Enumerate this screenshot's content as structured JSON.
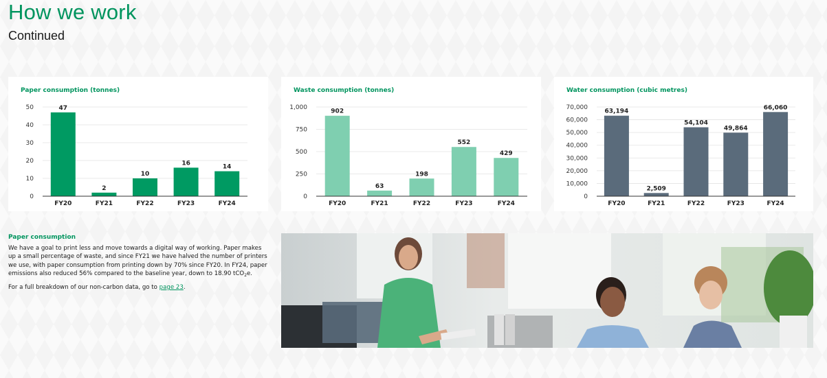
{
  "page": {
    "title": "How we work",
    "subtitle": "Continued"
  },
  "text": {
    "heading": "Paper consumption",
    "para1_a": "We have a goal to print less and move towards a digital way of working. Paper makes up a small percentage of waste, and since FY21 we have halved the number of printers we use, with paper consumption from printing down by 70% since FY20. In FY24, paper emissions also reduced 56% compared to the baseline year, down to 18.90 tCO",
    "para1_sub": "2",
    "para1_b": "e.",
    "para2_a": "For a full breakdown of our non-carbon data, go to ",
    "para2_link": "page 23",
    "para2_b": "."
  },
  "colors": {
    "brand_green": "#00945e",
    "paper_bar": "#009a62",
    "waste_bar": "#7fcfb0",
    "water_bar": "#5a6b7b"
  },
  "chart_data": [
    {
      "type": "bar",
      "title": "Paper consumption (tonnes)",
      "categories": [
        "FY20",
        "FY21",
        "FY22",
        "FY23",
        "FY24"
      ],
      "values": [
        47,
        2,
        10,
        16,
        14
      ],
      "value_labels": [
        "47",
        "2",
        "10",
        "16",
        "14"
      ],
      "ylim": [
        0,
        50
      ],
      "yticks": [
        0,
        10,
        20,
        30,
        40,
        50
      ],
      "ytick_labels": [
        "0",
        "10",
        "20",
        "30",
        "40",
        "50"
      ],
      "grid": true,
      "color": "#009a62"
    },
    {
      "type": "bar",
      "title": "Waste consumption (tonnes)",
      "categories": [
        "FY20",
        "FY21",
        "FY22",
        "FY23",
        "FY24"
      ],
      "values": [
        902,
        63,
        198,
        552,
        429
      ],
      "value_labels": [
        "902",
        "63",
        "198",
        "552",
        "429"
      ],
      "ylim": [
        0,
        1000
      ],
      "yticks": [
        0,
        250,
        500,
        750,
        1000
      ],
      "ytick_labels": [
        "0",
        "250",
        "500",
        "750",
        "1,000"
      ],
      "grid": true,
      "color": "#7fcfb0"
    },
    {
      "type": "bar",
      "title": "Water consumption (cubic metres)",
      "categories": [
        "FY20",
        "FY21",
        "FY22",
        "FY23",
        "FY24"
      ],
      "values": [
        63194,
        2509,
        54104,
        49864,
        66060
      ],
      "value_labels": [
        "63,194",
        "2,509",
        "54,104",
        "49,864",
        "66,060"
      ],
      "ylim": [
        0,
        70000
      ],
      "yticks": [
        0,
        10000,
        20000,
        30000,
        40000,
        50000,
        60000,
        70000
      ],
      "ytick_labels": [
        "0",
        "10,000",
        "20,000",
        "30,000",
        "40,000",
        "50,000",
        "60,000",
        "70,000"
      ],
      "grid": true,
      "color": "#5a6b7b"
    }
  ]
}
